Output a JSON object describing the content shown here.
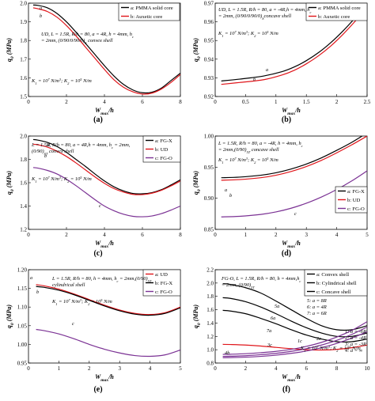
{
  "figure": {
    "panel_labels": [
      "(a)",
      "(b)",
      "(c)",
      "(d)",
      "(e)",
      "(f)"
    ]
  },
  "chart_data": [
    {
      "type": "line",
      "panel": "(a)",
      "xlabel": "W",
      "xlabel_sub": "max",
      "xlabel_suffix": "/h",
      "ylabel": "q",
      "ylabel_sub": "0",
      "ylabel_suffix": " (MPa)",
      "xlim": [
        0,
        8
      ],
      "ylim": [
        1.5,
        2.0
      ],
      "xticks": [
        0,
        2,
        4,
        6,
        8
      ],
      "yticks": [
        1.5,
        1.6,
        1.7,
        1.8,
        1.9,
        2.0
      ],
      "ytick_decimals": 1,
      "legend": {
        "position": "top-right",
        "entries": [
          "a: PMMA solid core",
          "b: Auxetic core"
        ]
      },
      "annotations": [
        "UD, L = 1.5R, R/h = 80, a = 4R, h = 4mm, h",
        "c",
        " = 2mm, (0/90/0/90/0)",
        "S",
        " convex shell",
        "K",
        "1",
        " = 10",
        "7",
        " N/m",
        "3",
        "; K",
        "2",
        " = 10",
        "5",
        " N/m"
      ],
      "curve_labels": [
        "a",
        "b"
      ],
      "series": [
        {
          "name": "a: PMMA solid core",
          "label": "a",
          "color": "#000000",
          "x": [
            0.25,
            0.5,
            1,
            1.5,
            2,
            2.5,
            3,
            3.5,
            4,
            4.5,
            5,
            5.5,
            6,
            6.5,
            7,
            7.5,
            8
          ],
          "y": [
            1.99,
            1.988,
            1.975,
            1.945,
            1.9,
            1.845,
            1.785,
            1.725,
            1.665,
            1.61,
            1.565,
            1.535,
            1.52,
            1.523,
            1.545,
            1.585,
            1.625
          ]
        },
        {
          "name": "b: Auxetic core",
          "label": "b",
          "color": "#e0161b",
          "x": [
            0.25,
            0.5,
            1,
            1.5,
            2,
            2.5,
            3,
            3.5,
            4,
            4.5,
            5,
            5.5,
            6,
            6.5,
            7,
            7.5,
            8
          ],
          "y": [
            1.975,
            1.97,
            1.955,
            1.925,
            1.88,
            1.825,
            1.765,
            1.705,
            1.645,
            1.59,
            1.55,
            1.525,
            1.513,
            1.518,
            1.54,
            1.575,
            1.618
          ]
        }
      ]
    },
    {
      "type": "line",
      "panel": "(b)",
      "xlabel": "W",
      "xlabel_sub": "max",
      "xlabel_suffix": "/h",
      "ylabel": "q",
      "ylabel_sub": "0",
      "ylabel_suffix": " (MPa)",
      "xlim": [
        0,
        2.5
      ],
      "ylim": [
        0.92,
        0.97
      ],
      "xticks": [
        0,
        0.5,
        1,
        1.5,
        2,
        2.5
      ],
      "yticks": [
        0.92,
        0.93,
        0.94,
        0.95,
        0.96,
        0.97
      ],
      "ytick_decimals": 2,
      "legend": {
        "position": "top-right",
        "entries": [
          "a: PMMA solid core",
          "b: Auxetic core"
        ]
      },
      "annotations": [
        "UD, L = 1.5R, R/h = 80, a = -4R,",
        "h = 4mm, h",
        "c",
        " = 2mm, (0/90/0/90/0)",
        "S",
        "concave shell",
        "K",
        "1",
        " = 10",
        "7",
        " N/m",
        "3",
        "; K",
        "2",
        " = 10",
        "5",
        " N/m"
      ],
      "curve_labels": [
        "a",
        "b"
      ],
      "series": [
        {
          "name": "a: PMMA solid core",
          "label": "a",
          "color": "#000000",
          "x": [
            0.1,
            0.4,
            0.8,
            1.1,
            1.3,
            1.5,
            1.7,
            1.9,
            2.1,
            2.3,
            2.5
          ],
          "y": [
            0.9283,
            0.9293,
            0.931,
            0.9333,
            0.9358,
            0.9392,
            0.9435,
            0.9488,
            0.955,
            0.962,
            0.9695
          ]
        },
        {
          "name": "b: Auxetic core",
          "label": "b",
          "color": "#e0161b",
          "x": [
            0.1,
            0.4,
            0.8,
            1.1,
            1.3,
            1.5,
            1.7,
            1.9,
            2.1,
            2.3,
            2.5
          ],
          "y": [
            0.9265,
            0.9275,
            0.929,
            0.9315,
            0.934,
            0.9375,
            0.9418,
            0.947,
            0.9532,
            0.9602,
            0.9678
          ]
        }
      ]
    },
    {
      "type": "line",
      "panel": "(c)",
      "xlabel": "W",
      "xlabel_sub": "max",
      "xlabel_suffix": "/h",
      "ylabel": "q",
      "ylabel_sub": "0",
      "ylabel_suffix": " (MPa)",
      "xlim": [
        0,
        8
      ],
      "ylim": [
        1.2,
        2.0
      ],
      "xticks": [
        0,
        2,
        4,
        6,
        8
      ],
      "yticks": [
        1.2,
        1.4,
        1.6,
        1.8,
        2.0
      ],
      "ytick_decimals": 1,
      "legend": {
        "position": "top-right",
        "entries": [
          "a: FG-X",
          "b: UD",
          "c: FG-O"
        ]
      },
      "annotations": [
        "L = 1.5R, R/h = 80, a = 4R,",
        "h = 4mm, h",
        "c",
        " = 2mm,",
        "(0/90)",
        "5T",
        " convex shell",
        "K",
        "1",
        " = 10",
        "7",
        " N/m",
        "3",
        "; K",
        "2",
        " = 10",
        "5",
        " N/m"
      ],
      "curve_labels": [
        "a",
        "b",
        "c"
      ],
      "series": [
        {
          "name": "a: FG-X",
          "label": "a",
          "color": "#000000",
          "x": [
            0.25,
            0.5,
            1,
            1.5,
            2,
            2.5,
            3,
            3.5,
            4,
            4.5,
            5,
            5.5,
            6,
            6.5,
            7,
            7.5,
            8
          ],
          "y": [
            1.97,
            1.965,
            1.945,
            1.91,
            1.86,
            1.8,
            1.74,
            1.675,
            1.615,
            1.565,
            1.53,
            1.508,
            1.505,
            1.515,
            1.54,
            1.58,
            1.625
          ]
        },
        {
          "name": "b: UD",
          "label": "b",
          "color": "#e0161b",
          "x": [
            0.25,
            0.5,
            1,
            1.5,
            2,
            2.5,
            3,
            3.5,
            4,
            4.5,
            5,
            5.5,
            6,
            6.5,
            7,
            7.5,
            8
          ],
          "y": [
            1.93,
            1.925,
            1.905,
            1.87,
            1.825,
            1.77,
            1.71,
            1.65,
            1.595,
            1.55,
            1.52,
            1.5,
            1.498,
            1.51,
            1.535,
            1.572,
            1.615
          ]
        },
        {
          "name": "c: FG-O",
          "label": "c",
          "color": "#7b3294",
          "x": [
            0.25,
            0.5,
            1,
            1.5,
            2,
            2.5,
            3,
            3.5,
            4,
            4.5,
            5,
            5.5,
            6,
            6.5,
            7,
            7.5,
            8
          ],
          "y": [
            1.73,
            1.725,
            1.705,
            1.675,
            1.63,
            1.575,
            1.515,
            1.455,
            1.4,
            1.36,
            1.33,
            1.312,
            1.308,
            1.315,
            1.335,
            1.365,
            1.4
          ]
        }
      ]
    },
    {
      "type": "line",
      "panel": "(d)",
      "xlabel": "W",
      "xlabel_sub": "max",
      "xlabel_suffix": "/h",
      "ylabel": "q",
      "ylabel_sub": "0",
      "ylabel_suffix": " (MPa)",
      "xlim": [
        0,
        5
      ],
      "ylim": [
        0.85,
        1.0
      ],
      "xticks": [
        0,
        1,
        2,
        3,
        4,
        5
      ],
      "yticks": [
        0.85,
        0.9,
        0.95,
        1.0
      ],
      "ytick_decimals": 2,
      "legend": {
        "position": "bottom-right",
        "entries": [
          "a: FG-X",
          "b: UD",
          "c: FG-O"
        ]
      },
      "annotations": [
        "L = 1.5R, R/h = 80, a = -4R, h = 4mm, h",
        "c",
        " = 2mm,",
        "(0/90)",
        "5T",
        " concave shell",
        "K",
        "1",
        " = 10",
        "7",
        " N/m",
        "3",
        "; K",
        "2",
        " = 10",
        "5",
        " N/m"
      ],
      "curve_labels": [
        "a",
        "b",
        "c"
      ],
      "series": [
        {
          "name": "a: FG-X",
          "label": "a",
          "color": "#000000",
          "x": [
            0.2,
            0.8,
            1.5,
            2,
            2.5,
            3,
            3.5,
            4,
            4.5,
            5
          ],
          "y": [
            0.933,
            0.934,
            0.937,
            0.941,
            0.947,
            0.955,
            0.965,
            0.977,
            0.99,
            1.005
          ]
        },
        {
          "name": "b: UD",
          "label": "b",
          "color": "#e0161b",
          "x": [
            0.2,
            0.8,
            1.5,
            2,
            2.5,
            3,
            3.5,
            4,
            4.5,
            5
          ],
          "y": [
            0.929,
            0.93,
            0.933,
            0.937,
            0.943,
            0.951,
            0.961,
            0.973,
            0.986,
            1.0
          ]
        },
        {
          "name": "c: FG-O",
          "label": "c",
          "color": "#7b3294",
          "x": [
            0.2,
            0.8,
            1.5,
            2,
            2.5,
            3,
            3.5,
            4,
            4.5,
            5
          ],
          "y": [
            0.87,
            0.871,
            0.874,
            0.878,
            0.884,
            0.892,
            0.902,
            0.914,
            0.928,
            0.944
          ]
        }
      ]
    },
    {
      "type": "line",
      "panel": "(e)",
      "xlabel": "W",
      "xlabel_sub": "max",
      "xlabel_suffix": "/h",
      "ylabel": "q",
      "ylabel_sub": "0",
      "ylabel_suffix": " (MPa)",
      "xlim": [
        0,
        5
      ],
      "ylim": [
        0.95,
        1.2
      ],
      "xticks": [
        0,
        1,
        2,
        3,
        4,
        5
      ],
      "yticks": [
        0.95,
        1.0,
        1.05,
        1.1,
        1.15,
        1.2
      ],
      "ytick_decimals": 2,
      "legend": {
        "position": "top-right",
        "entries": [
          "a: UD",
          "b: FG-X",
          "c: FG-O"
        ]
      },
      "annotations": [
        "L = 1.5R, R/h = 80, h = 4mm, h",
        "c",
        " = 2mm,",
        "(0/90)",
        "5T",
        " cylindrical shell",
        "K",
        "1",
        " = 10",
        "7",
        " N/m",
        "3",
        "; K",
        "2",
        " = 10",
        "5",
        " N/m"
      ],
      "curve_labels": [
        "a",
        "b",
        "c"
      ],
      "series": [
        {
          "name": "a: UD",
          "label": "a",
          "color": "#e0161b",
          "x": [
            0.25,
            0.5,
            1,
            1.5,
            2,
            2.5,
            3,
            3.5,
            4,
            4.5,
            5
          ],
          "y": [
            1.16,
            1.157,
            1.148,
            1.135,
            1.12,
            1.105,
            1.092,
            1.083,
            1.08,
            1.085,
            1.1
          ]
        },
        {
          "name": "b: FG-X",
          "label": "b",
          "color": "#000000",
          "x": [
            0.25,
            0.5,
            1,
            1.5,
            2,
            2.5,
            3,
            3.5,
            4,
            4.5,
            5
          ],
          "y": [
            1.155,
            1.153,
            1.145,
            1.133,
            1.118,
            1.103,
            1.09,
            1.081,
            1.078,
            1.083,
            1.098
          ]
        },
        {
          "name": "c: FG-O",
          "label": "c",
          "color": "#7b3294",
          "x": [
            0.25,
            0.5,
            1,
            1.5,
            2,
            2.5,
            3,
            3.5,
            4,
            4.5,
            5
          ],
          "y": [
            1.04,
            1.037,
            1.028,
            1.015,
            1.0,
            0.987,
            0.977,
            0.97,
            0.968,
            0.972,
            0.985
          ]
        }
      ]
    },
    {
      "type": "line",
      "panel": "(f)",
      "xlabel": "W",
      "xlabel_sub": "max",
      "xlabel_suffix": "/h",
      "ylabel": "q",
      "ylabel_sub": "0",
      "ylabel_suffix": " (MPa)",
      "xlim": [
        0,
        10
      ],
      "ylim": [
        0.8,
        2.2
      ],
      "xticks": [
        0,
        2,
        4,
        6,
        8,
        10
      ],
      "yticks": [
        0.8,
        1.0,
        1.2,
        1.4,
        1.6,
        1.8,
        2.0,
        2.2
      ],
      "ytick_decimals": 1,
      "legend": {
        "position": "top-right",
        "entries": [
          "a: Convex shell",
          "b: Cylindrical shell",
          "c: Concave shell"
        ]
      },
      "annotations": [
        "FG-O, L = 1.5R, R/h = 80, h = 4mm,",
        "h",
        "c",
        " = 2mm, (0/90)",
        "5T",
        "5: a = 8R",
        "6: a = 4R",
        "7: a = 6R",
        "1: a = -6R",
        "2: a = -4R",
        "3: a = -3R",
        "4: a = ∞",
        "K",
        "1",
        " = 10",
        "7",
        " N/m",
        "3",
        "; K",
        "2",
        " = 10",
        "5",
        " N/m"
      ],
      "curve_labels": [
        "5a",
        "6a",
        "7a",
        "4b",
        "3c",
        "1c",
        "2c"
      ],
      "series": [
        {
          "name": "5a",
          "label": "5a",
          "color": "#000000",
          "x": [
            0.5,
            1,
            2,
            3,
            4,
            5,
            6,
            7,
            8,
            9,
            10
          ],
          "y": [
            1.99,
            1.98,
            1.93,
            1.85,
            1.73,
            1.6,
            1.47,
            1.36,
            1.3,
            1.3,
            1.36
          ]
        },
        {
          "name": "6a",
          "label": "6a",
          "color": "#000000",
          "x": [
            0.5,
            1,
            2,
            3,
            4,
            5,
            6,
            7,
            8,
            9,
            10
          ],
          "y": [
            1.78,
            1.77,
            1.72,
            1.64,
            1.54,
            1.43,
            1.33,
            1.25,
            1.2,
            1.2,
            1.25
          ]
        },
        {
          "name": "7a",
          "label": "7a",
          "color": "#000000",
          "x": [
            0.5,
            1,
            2,
            3,
            4,
            5,
            6,
            7,
            8,
            9,
            10
          ],
          "y": [
            1.59,
            1.58,
            1.54,
            1.47,
            1.39,
            1.3,
            1.22,
            1.16,
            1.12,
            1.12,
            1.16
          ]
        },
        {
          "name": "4b",
          "label": "4b",
          "color": "#e0161b",
          "x": [
            0.5,
            1,
            2,
            3,
            4,
            5,
            6,
            7,
            8,
            9,
            10
          ],
          "y": [
            1.08,
            1.078,
            1.07,
            1.055,
            1.035,
            1.015,
            1.0,
            0.995,
            1.005,
            1.03,
            1.07
          ]
        },
        {
          "name": "3c",
          "label": "3c",
          "color": "#7b3294",
          "x": [
            0.5,
            1,
            2,
            3,
            4,
            5,
            6,
            7,
            8,
            9,
            10
          ],
          "y": [
            0.93,
            0.932,
            0.94,
            0.955,
            0.975,
            1.005,
            1.05,
            1.11,
            1.19,
            1.29,
            1.42
          ]
        },
        {
          "name": "1c",
          "label": "1c",
          "color": "#7b3294",
          "x": [
            0.5,
            1,
            2,
            3,
            4,
            5,
            6,
            7,
            8,
            9,
            10
          ],
          "y": [
            0.9,
            0.902,
            0.91,
            0.925,
            0.945,
            0.975,
            1.015,
            1.07,
            1.14,
            1.23,
            1.34
          ]
        },
        {
          "name": "2c",
          "label": "2c",
          "color": "#7b3294",
          "x": [
            0.5,
            1,
            2,
            3,
            4,
            5,
            6,
            7,
            8,
            9,
            10
          ],
          "y": [
            0.88,
            0.882,
            0.888,
            0.9,
            0.918,
            0.945,
            0.98,
            1.03,
            1.095,
            1.175,
            1.27
          ]
        }
      ]
    }
  ]
}
